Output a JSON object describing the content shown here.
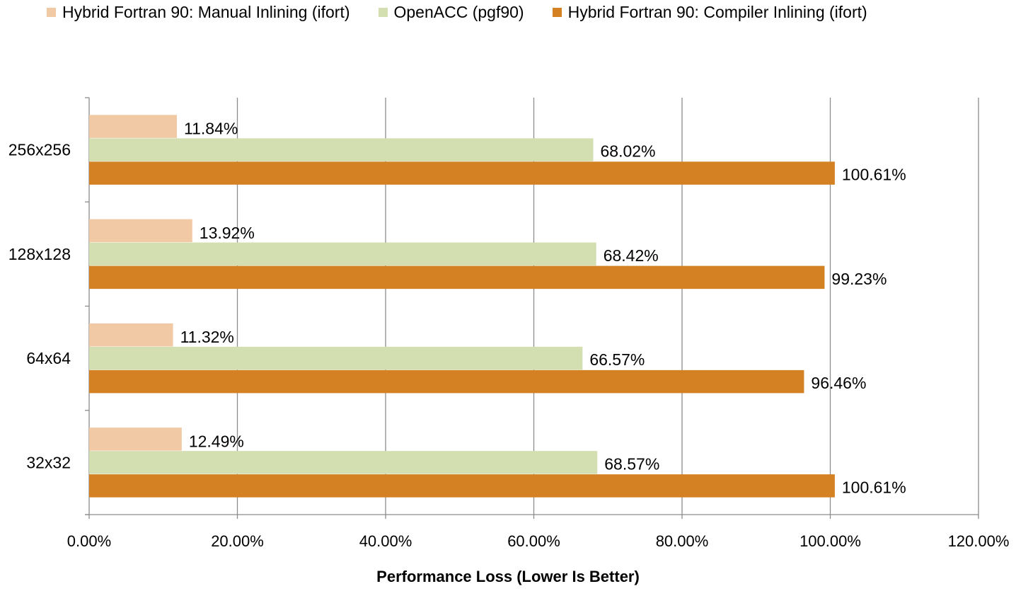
{
  "chart_data": {
    "type": "bar",
    "orientation": "horizontal",
    "categories": [
      "256x256",
      "128x128",
      "64x64",
      "32x32"
    ],
    "series": [
      {
        "name": "Hybrid Fortran 90: Manual Inlining (ifort)",
        "color": "#f1c9a5",
        "values": [
          11.84,
          13.92,
          11.32,
          12.49
        ]
      },
      {
        "name": "OpenACC (pgf90)",
        "color": "#d3dfb0",
        "values": [
          68.02,
          68.42,
          66.57,
          68.57
        ]
      },
      {
        "name": "Hybrid Fortran 90: Compiler Inlining (ifort)",
        "color": "#d48123",
        "values": [
          100.61,
          99.23,
          96.46,
          100.61
        ]
      }
    ],
    "data_labels": [
      [
        "11.84%",
        "13.92%",
        "11.32%",
        "12.49%"
      ],
      [
        "68.02%",
        "68.42%",
        "66.57%",
        "68.57%"
      ],
      [
        "100.61%",
        "99.23%",
        "96.46%",
        "100.61%"
      ]
    ],
    "xlim": [
      0,
      120
    ],
    "x_ticks": [
      0,
      20,
      40,
      60,
      80,
      100,
      120
    ],
    "x_tick_labels": [
      "0.00%",
      "20.00%",
      "40.00%",
      "60.00%",
      "80.00%",
      "100.00%",
      "120.00%"
    ],
    "xlabel": "Performance Loss (Lower Is Better)",
    "ylabel": "",
    "title": "",
    "grid": "vertical",
    "legend_position": "top"
  }
}
